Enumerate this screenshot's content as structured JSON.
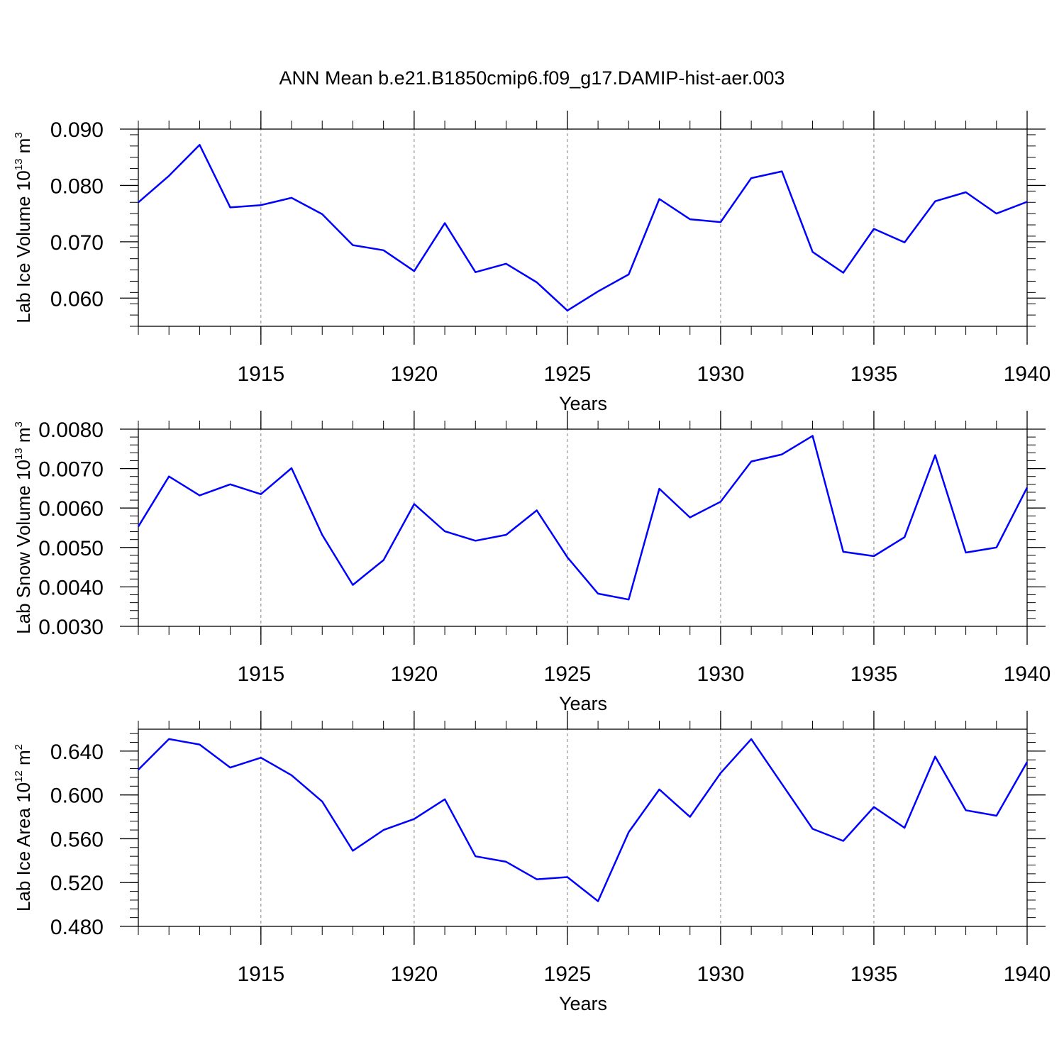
{
  "title": "ANN Mean b.e21.B1850cmip6.f09_g17.DAMIP-hist-aer.003",
  "colors": {
    "line": "#0000ff",
    "axes": "#000000",
    "grid": "#808080"
  },
  "chart_data": [
    {
      "type": "line",
      "ylabel_main": "Lab Ice Volume 10",
      "ylabel_exp": "13",
      "ylabel_unit": " m",
      "ylabel_unit_exp": "3",
      "xlabel": "Years",
      "xlim": [
        1911,
        1940
      ],
      "ylim": [
        0.055,
        0.09
      ],
      "yticks": [
        0.06,
        0.07,
        0.08,
        0.09
      ],
      "ytick_labels": [
        "0.060",
        "0.070",
        "0.080",
        "0.090"
      ],
      "xticks": [
        1915,
        1920,
        1925,
        1930,
        1935,
        1940
      ],
      "xtick_labels": [
        "1915",
        "1920",
        "1925",
        "1930",
        "1935",
        "1940"
      ],
      "grid": "dashed vertical lines at labeled x ticks",
      "x": [
        1911,
        1912,
        1913,
        1914,
        1915,
        1916,
        1917,
        1918,
        1919,
        1920,
        1921,
        1922,
        1923,
        1924,
        1925,
        1926,
        1927,
        1928,
        1929,
        1930,
        1931,
        1932,
        1933,
        1934,
        1935,
        1936,
        1937,
        1938,
        1939,
        1940
      ],
      "series": [
        {
          "values": [
            0.077,
            0.0817,
            0.0872,
            0.0761,
            0.0765,
            0.0778,
            0.0749,
            0.0694,
            0.0685,
            0.0648,
            0.0733,
            0.0646,
            0.0661,
            0.0628,
            0.0578,
            0.0612,
            0.0642,
            0.0776,
            0.074,
            0.0735,
            0.0813,
            0.0825,
            0.0682,
            0.0645,
            0.0723,
            0.0699,
            0.0772,
            0.0788,
            0.075,
            0.0771
          ]
        }
      ]
    },
    {
      "type": "line",
      "ylabel_main": "Lab Snow Volume 10",
      "ylabel_exp": "13",
      "ylabel_unit": " m",
      "ylabel_unit_exp": "3",
      "xlabel": "Years",
      "xlim": [
        1911,
        1940
      ],
      "ylim": [
        0.003,
        0.008
      ],
      "yticks": [
        0.003,
        0.004,
        0.005,
        0.006,
        0.007,
        0.008
      ],
      "ytick_labels": [
        "0.0030",
        "0.0040",
        "0.0050",
        "0.0060",
        "0.0070",
        "0.0080"
      ],
      "xticks": [
        1915,
        1920,
        1925,
        1930,
        1935,
        1940
      ],
      "xtick_labels": [
        "1915",
        "1920",
        "1925",
        "1930",
        "1935",
        "1940"
      ],
      "grid": "dashed vertical lines at labeled x ticks",
      "x": [
        1911,
        1912,
        1913,
        1914,
        1915,
        1916,
        1917,
        1918,
        1919,
        1920,
        1921,
        1922,
        1923,
        1924,
        1925,
        1926,
        1927,
        1928,
        1929,
        1930,
        1931,
        1932,
        1933,
        1934,
        1935,
        1936,
        1937,
        1938,
        1939,
        1940
      ],
      "series": [
        {
          "values": [
            0.00553,
            0.0068,
            0.00632,
            0.0066,
            0.00635,
            0.00701,
            0.00532,
            0.00405,
            0.00468,
            0.0061,
            0.00541,
            0.00517,
            0.00532,
            0.00594,
            0.00475,
            0.00383,
            0.00368,
            0.00649,
            0.00576,
            0.00616,
            0.00718,
            0.00736,
            0.00783,
            0.00489,
            0.00478,
            0.00526,
            0.00734,
            0.00487,
            0.005,
            0.00652
          ]
        }
      ]
    },
    {
      "type": "line",
      "ylabel_main": "Lab Ice Area 10",
      "ylabel_exp": "12",
      "ylabel_unit": " m",
      "ylabel_unit_exp": "2",
      "xlabel": "Years",
      "xlim": [
        1911,
        1940
      ],
      "ylim": [
        0.48,
        0.66
      ],
      "yticks": [
        0.48,
        0.52,
        0.56,
        0.6,
        0.64
      ],
      "ytick_labels": [
        "0.480",
        "0.520",
        "0.560",
        "0.600",
        "0.640"
      ],
      "xticks": [
        1915,
        1920,
        1925,
        1930,
        1935,
        1940
      ],
      "xtick_labels": [
        "1915",
        "1920",
        "1925",
        "1930",
        "1935",
        "1940"
      ],
      "grid": "dashed vertical lines at labeled x ticks",
      "x": [
        1911,
        1912,
        1913,
        1914,
        1915,
        1916,
        1917,
        1918,
        1919,
        1920,
        1921,
        1922,
        1923,
        1924,
        1925,
        1926,
        1927,
        1928,
        1929,
        1930,
        1931,
        1932,
        1933,
        1934,
        1935,
        1936,
        1937,
        1938,
        1939,
        1940
      ],
      "series": [
        {
          "values": [
            0.623,
            0.651,
            0.646,
            0.625,
            0.634,
            0.618,
            0.594,
            0.549,
            0.568,
            0.578,
            0.596,
            0.544,
            0.539,
            0.523,
            0.525,
            0.503,
            0.566,
            0.605,
            0.58,
            0.62,
            0.651,
            0.61,
            0.569,
            0.558,
            0.589,
            0.57,
            0.635,
            0.586,
            0.581,
            0.63
          ]
        }
      ]
    }
  ]
}
